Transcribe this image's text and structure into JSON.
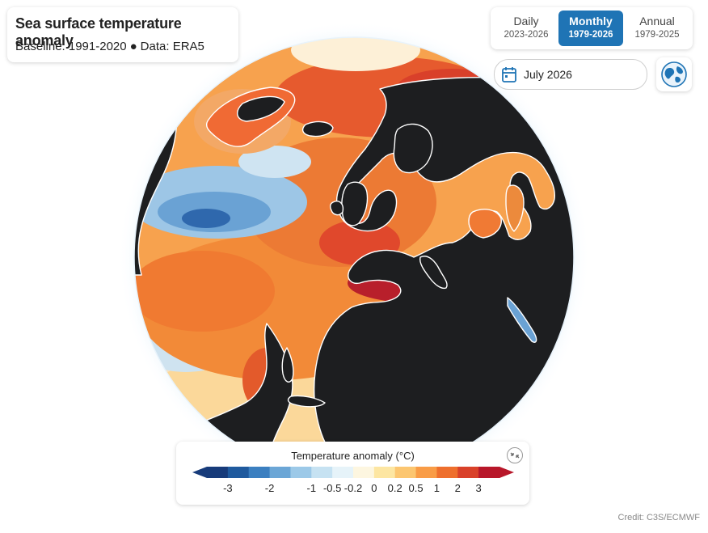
{
  "title": "Sea surface temperature anomaly",
  "subtitle": {
    "baseline": "Baseline: 1991-2020",
    "separator": "●",
    "data": "Data: ERA5"
  },
  "frequency_tabs": [
    {
      "label": "Daily",
      "range": "2023-2026",
      "active": false
    },
    {
      "label": "Monthly",
      "range": "1979-2026",
      "active": true
    },
    {
      "label": "Annual",
      "range": "1979-2025",
      "active": false
    }
  ],
  "date_picker": {
    "value": "July 2026",
    "icon": "calendar-icon"
  },
  "view_button": {
    "icon": "globe-icon"
  },
  "legend": {
    "title": "Temperature anomaly (°C)",
    "collapse_icon": "collapse-arrows-icon",
    "ticks": [
      "-3",
      "-2",
      "-1",
      "-0.5",
      "-0.2",
      "0",
      "0.2",
      "0.5",
      "1",
      "2",
      "3"
    ],
    "colors": [
      "#173b7a",
      "#1f5a9e",
      "#3b7fc0",
      "#6ba6d6",
      "#9cc9e8",
      "#c6e2f2",
      "#e6f3f9",
      "#fdf6e0",
      "#fde6a2",
      "#fcc670",
      "#f99c46",
      "#ee6f2d",
      "#d9412a",
      "#b8172a"
    ]
  },
  "map": {
    "land_color": "#1d1e20",
    "coastline_color": "#ffffff"
  },
  "credit": "Credit: C3S/ECMWF"
}
